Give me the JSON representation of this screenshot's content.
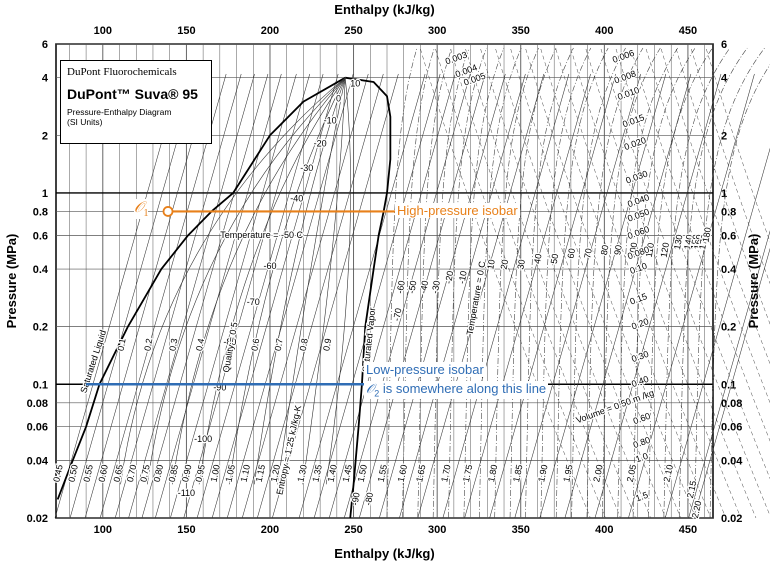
{
  "chart_data": {
    "type": "line",
    "title": "Pressure-Enthalpy Diagram",
    "xlabel": "Enthalpy  (kJ/kg)",
    "ylabel": "Pressure  (MPa)",
    "xlim": [
      72,
      465
    ],
    "ylim": [
      0.02,
      6
    ],
    "yscale": "log",
    "grid": true,
    "x_ticks": [
      100,
      150,
      200,
      250,
      300,
      350,
      400,
      450
    ],
    "y_ticks": [
      {
        "v": 0.02,
        "l": "0.02"
      },
      {
        "v": 0.04,
        "l": "0.04"
      },
      {
        "v": 0.06,
        "l": "0.06"
      },
      {
        "v": 0.08,
        "l": "0.08"
      },
      {
        "v": 0.1,
        "l": "0.1"
      },
      {
        "v": 0.2,
        "l": "0.2"
      },
      {
        "v": 0.4,
        "l": "0.4"
      },
      {
        "v": 0.6,
        "l": "0.6"
      },
      {
        "v": 0.8,
        "l": "0.8"
      },
      {
        "v": 1,
        "l": "1"
      },
      {
        "v": 2,
        "l": "2"
      },
      {
        "v": 4,
        "l": "4"
      },
      {
        "v": 6,
        "l": "6"
      }
    ],
    "saturation_dome": {
      "liquid": [
        [
          73,
          0.025
        ],
        [
          82,
          0.04
        ],
        [
          90,
          0.06
        ],
        [
          98,
          0.1
        ],
        [
          115,
          0.2
        ],
        [
          135,
          0.4
        ],
        [
          151,
          0.6
        ],
        [
          165,
          0.8
        ],
        [
          178,
          1
        ],
        [
          200,
          2
        ],
        [
          220,
          3
        ],
        [
          245,
          4
        ]
      ],
      "vapor": [
        [
          245,
          4
        ],
        [
          262,
          3.8
        ],
        [
          270,
          3.2
        ],
        [
          272,
          2.5
        ],
        [
          272,
          2
        ],
        [
          272,
          1.5
        ],
        [
          270,
          1
        ],
        [
          268,
          0.8
        ],
        [
          265,
          0.6
        ],
        [
          262,
          0.4
        ],
        [
          257,
          0.2
        ],
        [
          255,
          0.1
        ],
        [
          253,
          0.06
        ],
        [
          250,
          0.03
        ],
        [
          248,
          0.02
        ]
      ]
    },
    "temperature_labels": [
      {
        "text": "10",
        "x": 251,
        "y": 3.6
      },
      {
        "text": "0",
        "x": 241,
        "y": 3.0
      },
      {
        "text": "-10",
        "x": 236,
        "y": 2.3
      },
      {
        "text": "-20",
        "x": 230,
        "y": 1.75
      },
      {
        "text": "-30",
        "x": 222,
        "y": 1.3
      },
      {
        "text": "-40",
        "x": 216,
        "y": 0.9
      },
      {
        "text": "Temperature = -50  C",
        "x": 195,
        "y": 0.58
      },
      {
        "text": "-60",
        "x": 200,
        "y": 0.4
      },
      {
        "text": "-70",
        "x": 190,
        "y": 0.26
      },
      {
        "text": "-80",
        "x": 176,
        "y": 0.16
      },
      {
        "text": "-90",
        "x": 170,
        "y": 0.093
      },
      {
        "text": "-100",
        "x": 160,
        "y": 0.05
      },
      {
        "text": "-110",
        "x": 150,
        "y": 0.026
      }
    ],
    "quality_labels": [
      {
        "text": "0.1",
        "x": 113,
        "y": 0.16
      },
      {
        "text": "0.2",
        "x": 129,
        "y": 0.16
      },
      {
        "text": "0.3",
        "x": 144,
        "y": 0.16
      },
      {
        "text": "0.4",
        "x": 160,
        "y": 0.16
      },
      {
        "text": "Quality = 0.5",
        "x": 178,
        "y": 0.155
      },
      {
        "text": "0.6",
        "x": 193,
        "y": 0.16
      },
      {
        "text": "0.7",
        "x": 207,
        "y": 0.16
      },
      {
        "text": "0.8",
        "x": 222,
        "y": 0.16
      },
      {
        "text": "0.9",
        "x": 236,
        "y": 0.16
      }
    ],
    "entropy_labels": [
      {
        "text": "0.45",
        "x": 75,
        "y": 0.034
      },
      {
        "text": "0.50",
        "x": 84,
        "y": 0.034
      },
      {
        "text": "0.55",
        "x": 93,
        "y": 0.034
      },
      {
        "text": "0.60",
        "x": 102,
        "y": 0.034
      },
      {
        "text": "0.65",
        "x": 111,
        "y": 0.034
      },
      {
        "text": "0.70",
        "x": 119,
        "y": 0.034
      },
      {
        "text": "0.75",
        "x": 127,
        "y": 0.034
      },
      {
        "text": "0.80",
        "x": 135,
        "y": 0.034
      },
      {
        "text": "0.85",
        "x": 144,
        "y": 0.034
      },
      {
        "text": "0.90",
        "x": 152,
        "y": 0.034
      },
      {
        "text": "0.95",
        "x": 160,
        "y": 0.034
      },
      {
        "text": "1.00",
        "x": 169,
        "y": 0.034
      },
      {
        "text": "1.05",
        "x": 178,
        "y": 0.034
      },
      {
        "text": "1.10",
        "x": 187,
        "y": 0.034
      },
      {
        "text": "1.15",
        "x": 196,
        "y": 0.034
      },
      {
        "text": "1.20",
        "x": 205,
        "y": 0.034
      },
      {
        "text": "Entropy = 1.25 kJ/kg-K",
        "x": 213,
        "y": 0.045
      },
      {
        "text": "1.30",
        "x": 221,
        "y": 0.034
      },
      {
        "text": "1.35",
        "x": 230,
        "y": 0.034
      },
      {
        "text": "1.40",
        "x": 239,
        "y": 0.034
      },
      {
        "text": "1.45",
        "x": 248,
        "y": 0.034
      },
      {
        "text": "1.50",
        "x": 257,
        "y": 0.034
      },
      {
        "text": "1.55",
        "x": 269,
        "y": 0.034
      },
      {
        "text": "1.60",
        "x": 281,
        "y": 0.034
      },
      {
        "text": "1.65",
        "x": 292,
        "y": 0.034
      },
      {
        "text": "1.70",
        "x": 307,
        "y": 0.034
      },
      {
        "text": "1.75",
        "x": 320,
        "y": 0.034
      },
      {
        "text": "1.80",
        "x": 335,
        "y": 0.034
      },
      {
        "text": "1.85",
        "x": 350,
        "y": 0.034
      },
      {
        "text": "1.90",
        "x": 365,
        "y": 0.034
      },
      {
        "text": "1.95",
        "x": 380,
        "y": 0.034
      },
      {
        "text": "2.00",
        "x": 398,
        "y": 0.034
      },
      {
        "text": "2.05",
        "x": 418,
        "y": 0.034
      },
      {
        "text": "2.10",
        "x": 440,
        "y": 0.034
      },
      {
        "text": "2.15",
        "x": 454,
        "y": 0.028
      },
      {
        "text": "2.20",
        "x": 457,
        "y": 0.022
      }
    ],
    "vapor_temperature_labels": [
      {
        "text": "-90",
        "x": 253,
        "y": 0.025
      },
      {
        "text": "-80",
        "x": 261,
        "y": 0.025
      },
      {
        "text": "-70",
        "x": 278,
        "y": 0.23
      },
      {
        "text": "-60",
        "x": 280,
        "y": 0.32
      },
      {
        "text": "-50",
        "x": 287,
        "y": 0.32
      },
      {
        "text": "-40",
        "x": 294,
        "y": 0.32
      },
      {
        "text": "-30",
        "x": 301,
        "y": 0.32
      },
      {
        "text": "-20",
        "x": 309,
        "y": 0.36
      },
      {
        "text": "-10",
        "x": 317,
        "y": 0.36
      },
      {
        "text": "Temperature = 0  C",
        "x": 325,
        "y": 0.28
      },
      {
        "text": "10",
        "x": 334,
        "y": 0.42
      },
      {
        "text": "20",
        "x": 342,
        "y": 0.42
      },
      {
        "text": "30",
        "x": 352,
        "y": 0.42
      },
      {
        "text": "40",
        "x": 362,
        "y": 0.45
      },
      {
        "text": "50",
        "x": 372,
        "y": 0.45
      },
      {
        "text": "60",
        "x": 382,
        "y": 0.48
      },
      {
        "text": "70",
        "x": 392,
        "y": 0.48
      },
      {
        "text": "80",
        "x": 402,
        "y": 0.5
      },
      {
        "text": "90",
        "x": 410,
        "y": 0.5
      },
      {
        "text": "100",
        "x": 419,
        "y": 0.5
      },
      {
        "text": "110",
        "x": 429,
        "y": 0.5
      },
      {
        "text": "120",
        "x": 438,
        "y": 0.5
      },
      {
        "text": "130",
        "x": 446,
        "y": 0.55
      },
      {
        "text": "140",
        "x": 452,
        "y": 0.55
      },
      {
        "text": "150",
        "x": 456,
        "y": 0.55
      },
      {
        "text": "160",
        "x": 458,
        "y": 0.55
      },
      {
        "text": "170",
        "x": 461,
        "y": 0.55
      },
      {
        "text": "180",
        "x": 463,
        "y": 0.6
      }
    ],
    "volume_labels": [
      {
        "text": "0.003",
        "x": 312,
        "y": 4.9
      },
      {
        "text": "0.004",
        "x": 318,
        "y": 4.2
      },
      {
        "text": "0.005",
        "x": 323,
        "y": 3.8
      },
      {
        "text": "0.006",
        "x": 412,
        "y": 5.0
      },
      {
        "text": "0.008",
        "x": 413,
        "y": 3.9
      },
      {
        "text": "0.010",
        "x": 415,
        "y": 3.2
      },
      {
        "text": "0.015",
        "x": 418,
        "y": 2.3
      },
      {
        "text": "0.020",
        "x": 419,
        "y": 1.75
      },
      {
        "text": "0.030",
        "x": 420,
        "y": 1.17
      },
      {
        "text": "0.040",
        "x": 421,
        "y": 0.88
      },
      {
        "text": "0.050",
        "x": 421,
        "y": 0.74
      },
      {
        "text": "0.060",
        "x": 421,
        "y": 0.6
      },
      {
        "text": "0.080",
        "x": 421,
        "y": 0.47
      },
      {
        "text": "0.10",
        "x": 421,
        "y": 0.39
      },
      {
        "text": "0.15",
        "x": 421,
        "y": 0.27
      },
      {
        "text": "0.20",
        "x": 422,
        "y": 0.2
      },
      {
        "text": "0.30",
        "x": 422,
        "y": 0.135
      },
      {
        "text": "0.40",
        "x": 422,
        "y": 0.1
      },
      {
        "text": "Volume = 0.50 m  /kg",
        "x": 407,
        "y": 0.074
      },
      {
        "text": "0.60",
        "x": 423,
        "y": 0.064
      },
      {
        "text": "0.80",
        "x": 423,
        "y": 0.048
      },
      {
        "text": "1.0",
        "x": 423,
        "y": 0.04
      },
      {
        "text": "1.5",
        "x": 423,
        "y": 0.025
      }
    ],
    "saturated_liquid_label": {
      "text": "Saturated Liquid",
      "x": 96,
      "y": 0.13
    },
    "saturated_vapor_label": {
      "text": "Saturated Vapor",
      "x": 261,
      "y": 0.17
    },
    "high_pressure_isobar": {
      "name": "High-pressure isobar",
      "pressure": 0.8,
      "x": [
        139,
        272
      ]
    },
    "low_pressure_isobar": {
      "name": "Low-pressure isobar",
      "pressure": 0.1,
      "x": [
        90,
        255
      ]
    },
    "point_1": {
      "symbol": "𝒪",
      "subscript": "1",
      "x": 139,
      "pressure": 0.8
    },
    "annotations": {
      "high": "High-pressure isobar",
      "low_1": "Low-pressure isobar",
      "low_2": "is somewhere along this line",
      "low_sym": "𝒪",
      "low_sub": "2"
    }
  },
  "legend": {
    "org": "DuPont Fluorochemicals",
    "product": "DuPont™ Suva® 95",
    "sub_1": "Pressure-Enthalpy Diagram",
    "sub_2": "(SI Units)"
  },
  "colors": {
    "high": "#e8801a",
    "low": "#2f6db5",
    "grid": "#333333"
  }
}
